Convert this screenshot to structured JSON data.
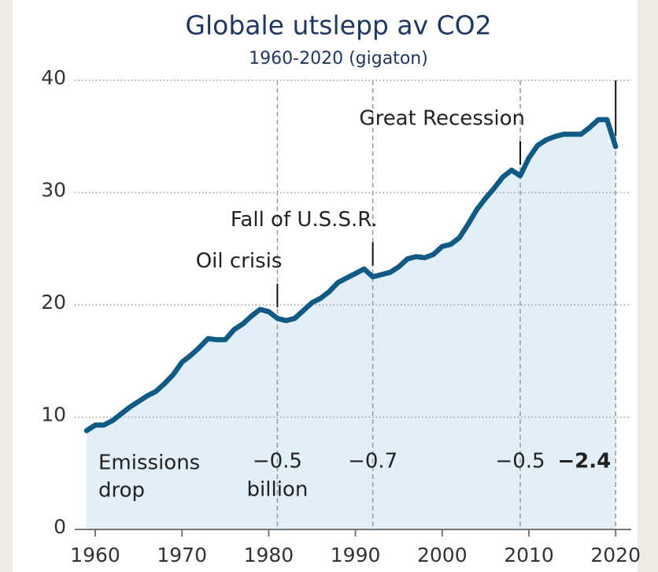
{
  "chart_data": {
    "type": "area",
    "title": "Globale utslepp av CO2",
    "subtitle": "1960-2020 (gigaton)",
    "x": [
      1959,
      1960,
      1961,
      1962,
      1963,
      1964,
      1965,
      1966,
      1967,
      1968,
      1969,
      1970,
      1971,
      1972,
      1973,
      1974,
      1975,
      1976,
      1977,
      1978,
      1979,
      1980,
      1981,
      1982,
      1983,
      1984,
      1985,
      1986,
      1987,
      1988,
      1989,
      1990,
      1991,
      1992,
      1993,
      1994,
      1995,
      1996,
      1997,
      1998,
      1999,
      2000,
      2001,
      2002,
      2003,
      2004,
      2005,
      2006,
      2007,
      2008,
      2009,
      2010,
      2011,
      2012,
      2013,
      2014,
      2015,
      2016,
      2017,
      2018,
      2019,
      2020
    ],
    "values": [
      8.8,
      9.3,
      9.3,
      9.7,
      10.3,
      10.9,
      11.4,
      11.9,
      12.3,
      13.0,
      13.8,
      14.9,
      15.5,
      16.2,
      17.0,
      16.9,
      16.9,
      17.8,
      18.3,
      19.0,
      19.6,
      19.4,
      18.8,
      18.6,
      18.8,
      19.5,
      20.2,
      20.6,
      21.2,
      22.0,
      22.4,
      22.8,
      23.2,
      22.5,
      22.7,
      22.9,
      23.4,
      24.1,
      24.3,
      24.2,
      24.5,
      25.2,
      25.4,
      26.0,
      27.2,
      28.5,
      29.5,
      30.4,
      31.4,
      32.0,
      31.5,
      33.1,
      34.2,
      34.7,
      35.0,
      35.2,
      35.2,
      35.2,
      35.8,
      36.5,
      36.5,
      34.1
    ],
    "color": "#0f5a86",
    "fill_color": "#e2eff8",
    "xlim": [
      1957.7,
      2023
    ],
    "ylim": [
      0,
      40
    ],
    "xticks": [
      1960,
      1970,
      1980,
      1990,
      2000,
      2010,
      2020
    ],
    "yticks": [
      0,
      10,
      20,
      30,
      40
    ],
    "grid": true,
    "drop_title": [
      "Emissions",
      "drop"
    ],
    "events": [
      {
        "x": 1981,
        "label": "Oil crisis",
        "drop": "−0.5",
        "unit": "billion"
      },
      {
        "x": 1992,
        "label": "Fall of U.S.S.R.",
        "drop": "−0.7"
      },
      {
        "x": 2009,
        "label": "Great Recession",
        "drop": "−0.5"
      },
      {
        "x": 2020,
        "drop": "−2.4"
      }
    ]
  }
}
